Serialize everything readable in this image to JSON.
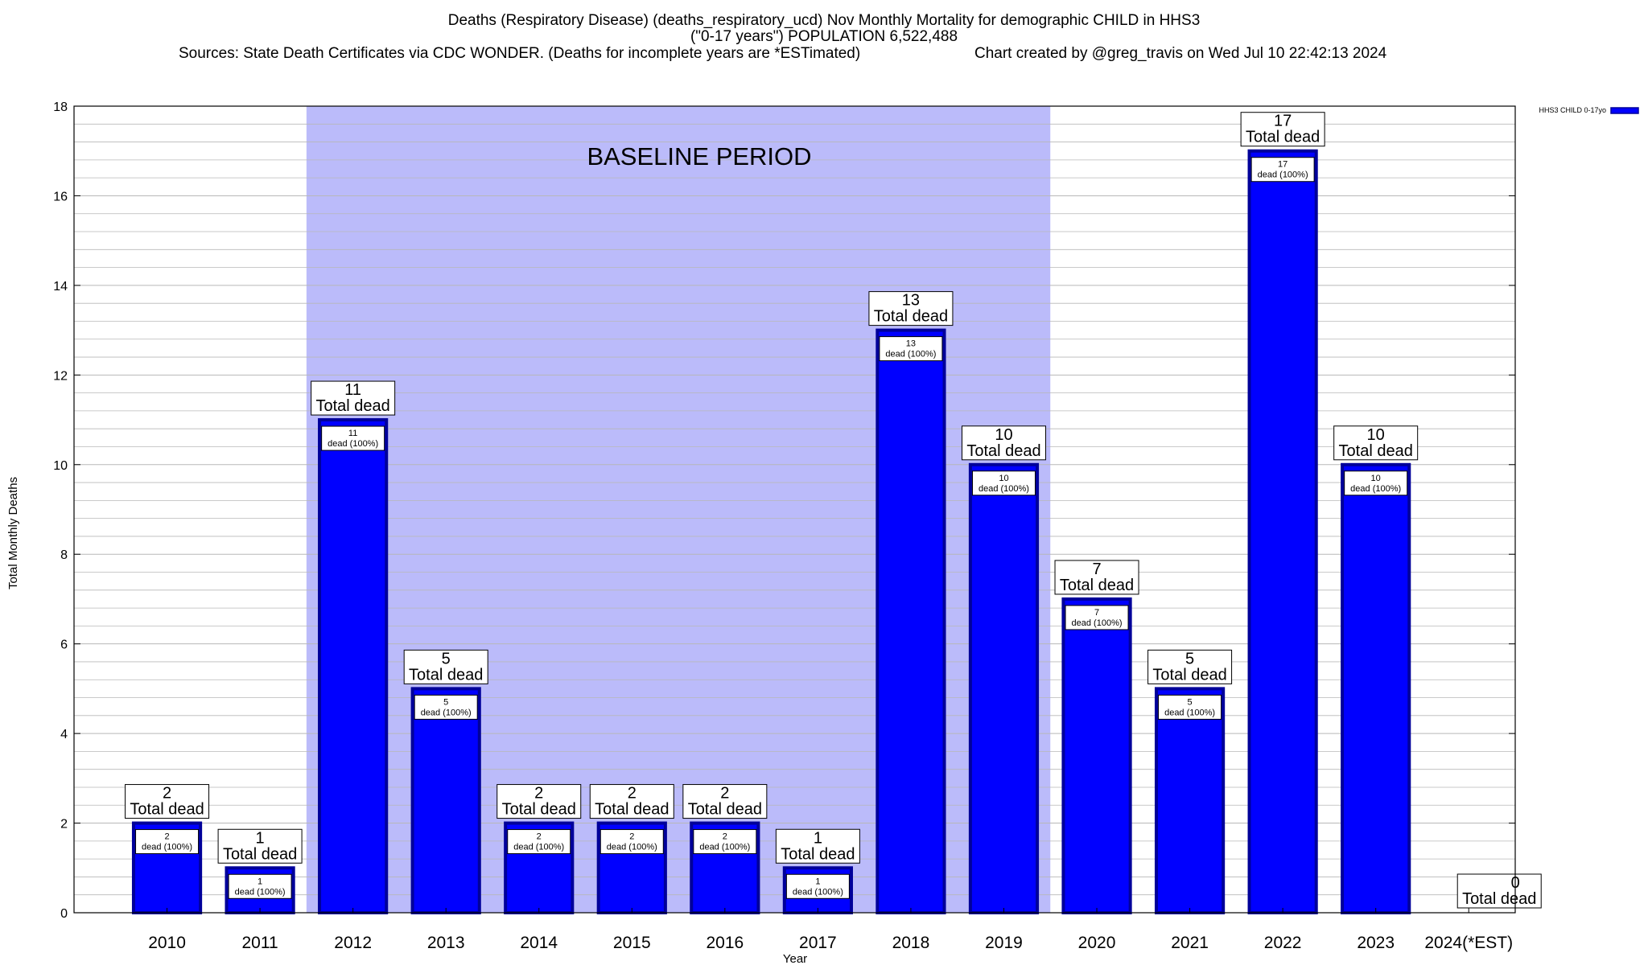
{
  "title_lines": [
    "Deaths (Respiratory Disease) (deaths_respiratory_ucd) Nov Monthly Mortality for demographic CHILD in HHS3",
    "(\"0-17 years\") POPULATION 6,522,488"
  ],
  "sources_text": "Sources: State Death Certificates via CDC WONDER. (Deaths for incomplete years are *ESTimated)",
  "credit_text": "Chart created by @greg_travis on Wed Jul 10 22:42:13 2024",
  "chart_data": {
    "type": "bar",
    "categories": [
      "2010",
      "2011",
      "2012",
      "2013",
      "2014",
      "2015",
      "2016",
      "2017",
      "2018",
      "2019",
      "2020",
      "2021",
      "2022",
      "2023",
      "2024(*EST)"
    ],
    "series": [
      {
        "name": "HHS3 CHILD 0-17yo",
        "values": [
          2,
          1,
          11,
          5,
          2,
          2,
          2,
          1,
          13,
          10,
          7,
          5,
          17,
          10,
          0
        ]
      }
    ],
    "inner_labels": [
      "dead (100%)"
    ],
    "total_label": "Total dead",
    "xlabel": "Year",
    "ylabel": "Total Monthly Deaths",
    "ylim": [
      0,
      18
    ],
    "yticks": [
      0,
      2,
      4,
      6,
      8,
      10,
      12,
      14,
      16,
      18
    ],
    "minor_grid_step": 0.4,
    "grid": true,
    "baseline_period": {
      "label": "BASELINE PERIOD",
      "start": "2012",
      "end": "2019"
    },
    "legend_position": "top-right",
    "colors": {
      "bar_fill": "#0000ff",
      "bar_edge": "#00009a",
      "baseline_shade": "#bbbbfa",
      "grid": "#b8b8b8"
    }
  }
}
